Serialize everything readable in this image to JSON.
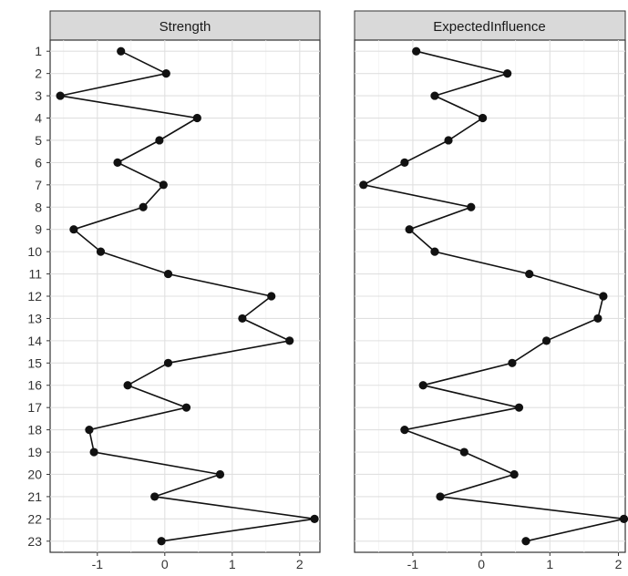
{
  "chart_data": {
    "type": "line",
    "orientation": "horizontal",
    "categories": [
      "1",
      "2",
      "3",
      "4",
      "5",
      "6",
      "7",
      "8",
      "9",
      "10",
      "11",
      "12",
      "13",
      "14",
      "15",
      "16",
      "17",
      "18",
      "19",
      "20",
      "21",
      "22",
      "23"
    ],
    "grid": true,
    "colors": {
      "line": "#111111",
      "strip": "#d9d9d9",
      "grid": "#e0e0e0"
    },
    "panels": [
      {
        "title": "Strength",
        "xlim": [
          -1.7,
          2.3
        ],
        "xticks": [
          -1,
          0,
          1,
          2
        ],
        "xtick_labels": [
          "-1",
          "0",
          "1",
          "2"
        ],
        "values": [
          -0.65,
          0.02,
          -1.55,
          0.48,
          -0.08,
          -0.7,
          -0.02,
          -0.32,
          -1.35,
          -0.95,
          0.05,
          1.58,
          1.15,
          1.85,
          0.05,
          -0.55,
          0.32,
          -1.12,
          -1.05,
          0.82,
          -0.15,
          2.22,
          -0.05
        ]
      },
      {
        "title": "ExpectedInfluence",
        "xlim": [
          -1.85,
          2.1
        ],
        "xticks": [
          -1,
          0,
          1,
          2
        ],
        "xtick_labels": [
          "-1",
          "0",
          "1",
          "2"
        ],
        "values": [
          -0.95,
          0.38,
          -0.68,
          0.02,
          -0.48,
          -1.12,
          -1.72,
          -0.15,
          -1.05,
          -0.68,
          0.7,
          1.78,
          1.7,
          0.95,
          0.45,
          -0.85,
          0.55,
          -1.12,
          -0.25,
          0.48,
          -0.6,
          2.08,
          0.65
        ]
      }
    ]
  }
}
